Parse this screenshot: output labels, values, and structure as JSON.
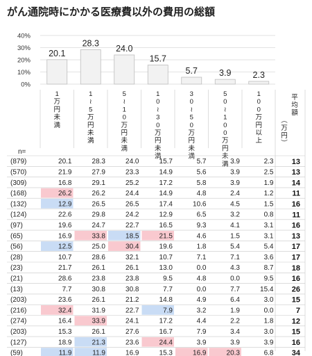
{
  "title": "がん通院時にかかる医療費以外の費用の総額",
  "chart_data": {
    "type": "bar",
    "y_ticks": [
      "40%",
      "30%",
      "20%",
      "10%",
      "0%"
    ],
    "ylim": [
      0,
      40
    ],
    "categories": [
      "1万円未満",
      "1〜5万円未満",
      "5〜10万円未満",
      "10〜30万円未満",
      "30〜50万円未満",
      "50〜100万円未満",
      "100万円以上"
    ],
    "values": [
      20.1,
      28.3,
      24.0,
      15.7,
      5.7,
      3.9,
      2.3
    ],
    "value_labels": [
      "20.1",
      "28.3",
      "24.0",
      "15.7",
      "5.7",
      "3.9",
      "2.3"
    ],
    "avg_header": "平均額（万円）",
    "n_label": "n=",
    "colors": {
      "high": "#f9c9cf",
      "low": "#c9dcf5",
      "bar": "#f2f2f2"
    },
    "table": [
      {
        "n": "(879)",
        "values": [
          "20.1",
          "28.3",
          "24.0",
          "15.7",
          "5.7",
          "3.9",
          "2.3"
        ],
        "avg": "13",
        "hl": [
          "",
          "",
          "",
          "",
          "",
          "",
          ""
        ]
      },
      {
        "n": "(570)",
        "values": [
          "21.9",
          "27.9",
          "23.3",
          "14.9",
          "5.6",
          "3.9",
          "2.5"
        ],
        "avg": "13",
        "hl": [
          "",
          "",
          "",
          "",
          "",
          "",
          ""
        ]
      },
      {
        "n": "(309)",
        "values": [
          "16.8",
          "29.1",
          "25.2",
          "17.2",
          "5.8",
          "3.9",
          "1.9"
        ],
        "avg": "14",
        "hl": [
          "",
          "",
          "",
          "",
          "",
          "",
          ""
        ]
      },
      {
        "n": "(168)",
        "values": [
          "26.2",
          "26.2",
          "24.4",
          "14.9",
          "4.8",
          "2.4",
          "1.2"
        ],
        "avg": "11",
        "hl": [
          "high",
          "",
          "",
          "",
          "",
          "",
          ""
        ]
      },
      {
        "n": "(132)",
        "values": [
          "12.9",
          "26.5",
          "26.5",
          "17.4",
          "10.6",
          "4.5",
          "1.5"
        ],
        "avg": "16",
        "hl": [
          "low",
          "",
          "",
          "",
          "",
          "",
          ""
        ]
      },
      {
        "n": "(124)",
        "values": [
          "22.6",
          "29.8",
          "24.2",
          "12.9",
          "6.5",
          "3.2",
          "0.8"
        ],
        "avg": "11",
        "hl": [
          "",
          "",
          "",
          "",
          "",
          "",
          ""
        ]
      },
      {
        "n": "(97)",
        "values": [
          "19.6",
          "24.7",
          "22.7",
          "16.5",
          "9.3",
          "4.1",
          "3.1"
        ],
        "avg": "16",
        "hl": [
          "",
          "",
          "",
          "",
          "",
          "",
          ""
        ]
      },
      {
        "n": "(65)",
        "values": [
          "16.9",
          "33.8",
          "18.5",
          "21.5",
          "4.6",
          "1.5",
          "3.1"
        ],
        "avg": "13",
        "hl": [
          "",
          "high",
          "low",
          "high",
          "",
          "",
          ""
        ]
      },
      {
        "n": "(56)",
        "values": [
          "12.5",
          "25.0",
          "30.4",
          "19.6",
          "1.8",
          "5.4",
          "5.4"
        ],
        "avg": "17",
        "hl": [
          "low",
          "",
          "high",
          "",
          "",
          "",
          ""
        ]
      },
      {
        "n": "(28)",
        "values": [
          "10.7",
          "28.6",
          "32.1",
          "10.7",
          "7.1",
          "7.1",
          "3.6"
        ],
        "avg": "17",
        "hl": [
          "",
          "",
          "",
          "",
          "",
          "",
          ""
        ]
      },
      {
        "n": "(23)",
        "values": [
          "21.7",
          "26.1",
          "26.1",
          "13.0",
          "0.0",
          "4.3",
          "8.7"
        ],
        "avg": "18",
        "hl": [
          "",
          "",
          "",
          "",
          "",
          "",
          ""
        ]
      },
      {
        "n": "(21)",
        "values": [
          "28.6",
          "23.8",
          "23.8",
          "9.5",
          "4.8",
          "0.0",
          "9.5"
        ],
        "avg": "16",
        "hl": [
          "",
          "",
          "",
          "",
          "",
          "",
          ""
        ]
      },
      {
        "n": "(13)",
        "values": [
          "7.7",
          "30.8",
          "30.8",
          "7.7",
          "0.0",
          "7.7",
          "15.4"
        ],
        "avg": "26",
        "hl": [
          "",
          "",
          "",
          "",
          "",
          "",
          ""
        ]
      },
      {
        "n": "(203)",
        "values": [
          "23.6",
          "26.1",
          "21.2",
          "14.8",
          "4.9",
          "6.4",
          "3.0"
        ],
        "avg": "15",
        "hl": [
          "",
          "",
          "",
          "",
          "",
          "",
          ""
        ]
      },
      {
        "n": "(216)",
        "values": [
          "32.4",
          "31.9",
          "22.7",
          "7.9",
          "3.2",
          "1.9",
          "0.0"
        ],
        "avg": "7",
        "hl": [
          "high",
          "",
          "",
          "low",
          "",
          "",
          ""
        ]
      },
      {
        "n": "(274)",
        "values": [
          "16.4",
          "33.9",
          "24.1",
          "17.2",
          "4.4",
          "2.2",
          "1.8"
        ],
        "avg": "12",
        "hl": [
          "",
          "high",
          "",
          "",
          "",
          "",
          ""
        ]
      },
      {
        "n": "(203)",
        "values": [
          "15.3",
          "26.1",
          "27.6",
          "16.7",
          "7.9",
          "3.4",
          "3.0"
        ],
        "avg": "15",
        "hl": [
          "",
          "",
          "",
          "",
          "",
          "",
          ""
        ]
      },
      {
        "n": "(127)",
        "values": [
          "18.9",
          "21.3",
          "23.6",
          "24.4",
          "3.9",
          "3.9",
          "3.9"
        ],
        "avg": "16",
        "hl": [
          "",
          "low",
          "",
          "high",
          "",
          "",
          ""
        ]
      },
      {
        "n": "(59)",
        "values": [
          "11.9",
          "11.9",
          "16.9",
          "15.3",
          "16.9",
          "20.3",
          "6.8"
        ],
        "avg": "34",
        "hl": [
          "low",
          "low",
          "",
          "",
          "high",
          "high",
          ""
        ]
      }
    ]
  }
}
